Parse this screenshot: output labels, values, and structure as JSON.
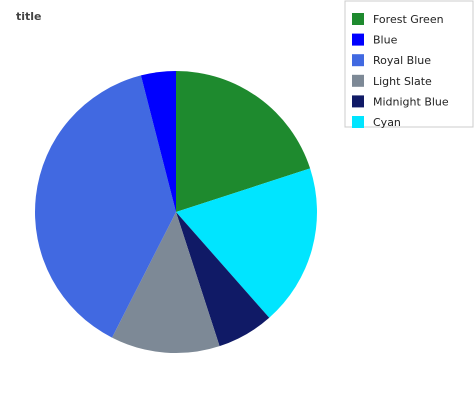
{
  "chart_data": {
    "type": "pie",
    "title": "title",
    "legend_position": "right",
    "slices": [
      {
        "label": "Forest Green",
        "value": 20,
        "color": "#1e8a2e"
      },
      {
        "label": "Cyan",
        "value": 18.5,
        "color": "#00e5ff"
      },
      {
        "label": "Midnight Blue",
        "value": 6.5,
        "color": "#101a66"
      },
      {
        "label": "Light Slate",
        "value": 12.5,
        "color": "#7d8996"
      },
      {
        "label": "Royal Blue",
        "value": 38.5,
        "color": "#4169e1"
      },
      {
        "label": "Blue",
        "value": 4,
        "color": "#0000ff"
      }
    ],
    "legend": [
      {
        "label": "Forest Green",
        "color": "#1e8a2e"
      },
      {
        "label": "Blue",
        "color": "#0000ff"
      },
      {
        "label": "Royal Blue",
        "color": "#4169e1"
      },
      {
        "label": "Light Slate",
        "color": "#7d8996"
      },
      {
        "label": "Midnight Blue",
        "color": "#101a66"
      },
      {
        "label": "Cyan",
        "color": "#00e5ff"
      }
    ]
  }
}
